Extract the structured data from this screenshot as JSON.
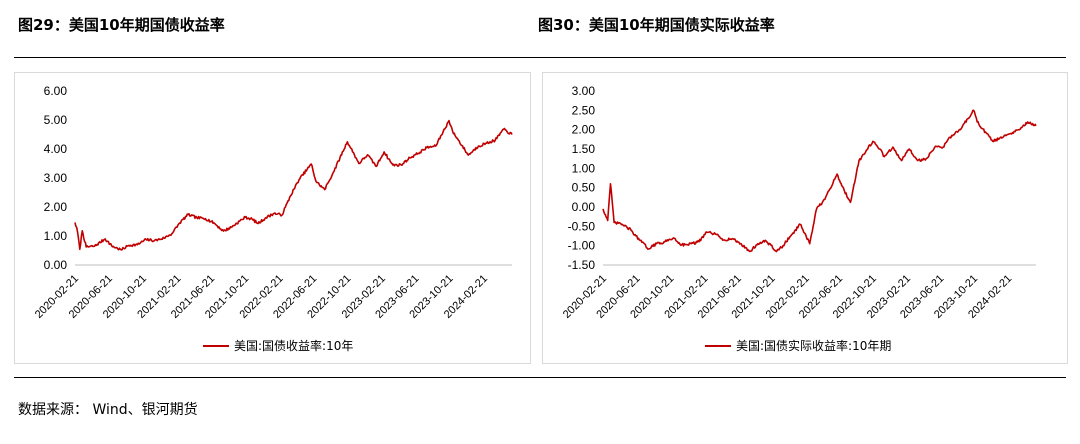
{
  "titles": {
    "left": "图29：美国10年期国债收益率",
    "right": "图30：美国10年期国债实际收益率"
  },
  "source": "数据来源： Wind、银河期货",
  "colors": {
    "series": "#c00000",
    "rule": "#000000",
    "panel_border": "#d9d9d9"
  },
  "chart_data": [
    {
      "type": "line",
      "title": "",
      "yticks": [
        "0.00",
        "1.00",
        "2.00",
        "3.00",
        "4.00",
        "5.00",
        "6.00"
      ],
      "ylim": [
        0,
        6
      ],
      "x_ticklabels": [
        "2020-02-21",
        "2020-06-21",
        "2020-10-21",
        "2021-02-21",
        "2021-06-21",
        "2021-10-21",
        "2022-02-21",
        "2022-06-21",
        "2022-10-21",
        "2023-02-21",
        "2023-06-21",
        "2023-10-21",
        "2024-02-21"
      ],
      "xlim": [
        "2020-02-21",
        "2024-05-31"
      ],
      "legend": "top-none-bottom-center",
      "series": [
        {
          "name": "美国:国债收益率:10年",
          "x": [
            "2020-02-21",
            "2020-03-01",
            "2020-03-09",
            "2020-03-18",
            "2020-04-01",
            "2020-05-01",
            "2020-06-08",
            "2020-07-01",
            "2020-08-04",
            "2020-09-01",
            "2020-10-01",
            "2020-11-01",
            "2020-12-01",
            "2021-01-04",
            "2021-02-01",
            "2021-03-01",
            "2021-03-31",
            "2021-05-01",
            "2021-06-01",
            "2021-07-01",
            "2021-08-04",
            "2021-09-01",
            "2021-10-21",
            "2021-11-15",
            "2021-12-06",
            "2022-01-03",
            "2022-02-01",
            "2022-03-01",
            "2022-04-01",
            "2022-05-01",
            "2022-06-14",
            "2022-07-01",
            "2022-08-01",
            "2022-09-01",
            "2022-10-21",
            "2022-11-15",
            "2022-12-01",
            "2023-01-01",
            "2023-02-01",
            "2023-03-01",
            "2023-04-01",
            "2023-05-01",
            "2023-06-01",
            "2023-07-01",
            "2023-08-01",
            "2023-09-01",
            "2023-10-19",
            "2023-11-01",
            "2023-12-27",
            "2024-02-01",
            "2024-03-01",
            "2024-04-01",
            "2024-05-01",
            "2024-05-31"
          ],
          "y": [
            1.47,
            1.15,
            0.54,
            1.18,
            0.62,
            0.65,
            0.9,
            0.66,
            0.52,
            0.68,
            0.7,
            0.88,
            0.84,
            0.93,
            1.08,
            1.45,
            1.74,
            1.63,
            1.6,
            1.45,
            1.17,
            1.3,
            1.65,
            1.58,
            1.43,
            1.63,
            1.78,
            1.72,
            2.39,
            2.94,
            3.48,
            2.88,
            2.6,
            3.2,
            4.25,
            3.8,
            3.5,
            3.8,
            3.4,
            3.9,
            3.45,
            3.45,
            3.7,
            3.85,
            4.05,
            4.1,
            4.98,
            4.6,
            3.79,
            4.1,
            4.2,
            4.3,
            4.68,
            4.5
          ]
        }
      ]
    },
    {
      "type": "line",
      "title": "",
      "yticks": [
        "-1.50",
        "-1.00",
        "-0.50",
        "0.00",
        "0.50",
        "1.00",
        "1.50",
        "2.00",
        "2.50",
        "3.00"
      ],
      "ylim": [
        -1.5,
        3.0
      ],
      "x_ticklabels": [
        "2020-02-21",
        "2020-06-21",
        "2020-10-21",
        "2021-02-21",
        "2021-06-21",
        "2021-10-21",
        "2022-02-21",
        "2022-06-21",
        "2022-10-21",
        "2023-02-21",
        "2023-06-21",
        "2023-10-21",
        "2024-02-21"
      ],
      "xlim": [
        "2020-02-21",
        "2024-05-31"
      ],
      "legend": "top-none-bottom-center",
      "series": [
        {
          "name": "美国:国债实际收益率:10年期",
          "x": [
            "2020-02-21",
            "2020-03-09",
            "2020-03-19",
            "2020-04-01",
            "2020-05-01",
            "2020-06-01",
            "2020-07-01",
            "2020-08-04",
            "2020-09-01",
            "2020-10-01",
            "2020-11-01",
            "2020-12-01",
            "2021-01-04",
            "2021-02-01",
            "2021-03-01",
            "2021-04-01",
            "2021-05-01",
            "2021-06-01",
            "2021-07-01",
            "2021-08-04",
            "2021-09-01",
            "2021-10-01",
            "2021-11-08",
            "2021-12-01",
            "2022-01-03",
            "2022-02-01",
            "2022-03-07",
            "2022-04-01",
            "2022-05-01",
            "2022-06-14",
            "2022-07-01",
            "2022-08-01",
            "2022-09-01",
            "2022-10-21",
            "2022-11-15",
            "2022-12-01",
            "2023-01-01",
            "2023-02-01",
            "2023-03-01",
            "2023-04-01",
            "2023-05-01",
            "2023-06-01",
            "2023-07-01",
            "2023-08-01",
            "2023-09-01",
            "2023-10-19",
            "2023-11-01",
            "2023-12-27",
            "2024-02-01",
            "2024-03-01",
            "2024-04-01",
            "2024-05-01",
            "2024-05-31"
          ],
          "y": [
            -0.05,
            -0.35,
            0.6,
            -0.4,
            -0.45,
            -0.6,
            -0.85,
            -1.08,
            -0.95,
            -0.9,
            -0.8,
            -0.98,
            -0.95,
            -0.9,
            -0.65,
            -0.7,
            -0.85,
            -0.82,
            -0.95,
            -1.15,
            -0.95,
            -0.88,
            -1.15,
            -1.0,
            -0.7,
            -0.45,
            -0.95,
            -0.05,
            0.2,
            0.85,
            0.55,
            0.12,
            1.2,
            1.7,
            1.5,
            1.3,
            1.55,
            1.2,
            1.5,
            1.2,
            1.25,
            1.55,
            1.55,
            1.85,
            2.0,
            2.5,
            2.2,
            1.7,
            1.8,
            1.9,
            2.0,
            2.2,
            2.1
          ]
        }
      ]
    }
  ]
}
